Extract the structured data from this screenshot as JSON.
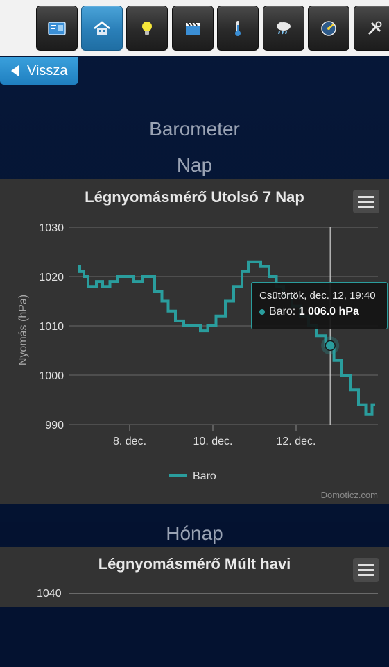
{
  "toolbar": {
    "items": [
      {
        "name": "dashboard",
        "icon": "dashboard-icon",
        "active": false
      },
      {
        "name": "floorplan",
        "icon": "house-icon",
        "active": true
      },
      {
        "name": "switches",
        "icon": "lightbulb-icon",
        "active": false
      },
      {
        "name": "scenes",
        "icon": "clapperboard-icon",
        "active": false
      },
      {
        "name": "temperature",
        "icon": "thermometer-icon",
        "active": false
      },
      {
        "name": "weather",
        "icon": "rain-cloud-icon",
        "active": false
      },
      {
        "name": "utility",
        "icon": "gauge-icon",
        "active": false
      },
      {
        "name": "setup",
        "icon": "tools-icon",
        "active": false
      }
    ]
  },
  "back_button": {
    "label": "Vissza"
  },
  "page": {
    "title": "Barometer",
    "section_day": "Nap",
    "section_month": "Hónap"
  },
  "chart_week": {
    "title": "Légnyomásmérő Utolsó 7 Nap",
    "credits": "Domoticz.com",
    "tooltip": {
      "date": "Csütörtök, dec. 12, 19:40",
      "series": "Baro",
      "value": "1 006.0 hPa"
    }
  },
  "chart_month": {
    "title": "Légnyomásmérő Múlt havi",
    "first_tick": "1040"
  },
  "chart_data": {
    "type": "line",
    "title": "Légnyomásmérő Utolsó 7 Nap",
    "ylabel": "Nyomás (hPa)",
    "xlabel": "",
    "ylim": [
      990,
      1030
    ],
    "yticks": [
      990,
      1000,
      1010,
      1020,
      1030
    ],
    "xticks": [
      "8. dec.",
      "10. dec.",
      "12. dec."
    ],
    "xtick_days": [
      8,
      10,
      12
    ],
    "xlim_days": [
      6.75,
      13.95
    ],
    "grid": true,
    "legend": "bottom-center",
    "highlight": {
      "x_day": 12.82,
      "y": 1006.0
    },
    "series": [
      {
        "name": "Baro",
        "color": "#2a9d9d",
        "x_day": [
          6.75,
          6.85,
          6.95,
          7.05,
          7.15,
          7.25,
          7.45,
          7.6,
          7.8,
          8.0,
          8.2,
          8.4,
          8.5,
          8.7,
          8.85,
          9.0,
          9.2,
          9.4,
          9.6,
          9.8,
          9.95,
          10.2,
          10.4,
          10.6,
          10.8,
          10.9,
          11.05,
          11.25,
          11.45,
          11.6,
          11.8,
          12.0,
          12.2,
          12.4,
          12.6,
          12.82,
          13.0,
          13.2,
          13.4,
          13.6,
          13.75,
          13.9
        ],
        "values": [
          1022,
          1021,
          1020,
          1018,
          1018,
          1019,
          1018,
          1019,
          1020,
          1020,
          1019,
          1020,
          1020,
          1017,
          1015,
          1013,
          1011,
          1010,
          1010,
          1009,
          1010,
          1012,
          1015,
          1018,
          1021,
          1023,
          1023,
          1022,
          1020,
          1018,
          1016,
          1014,
          1012,
          1010,
          1008,
          1006,
          1003,
          1000,
          997,
          994,
          992,
          994
        ]
      }
    ]
  }
}
